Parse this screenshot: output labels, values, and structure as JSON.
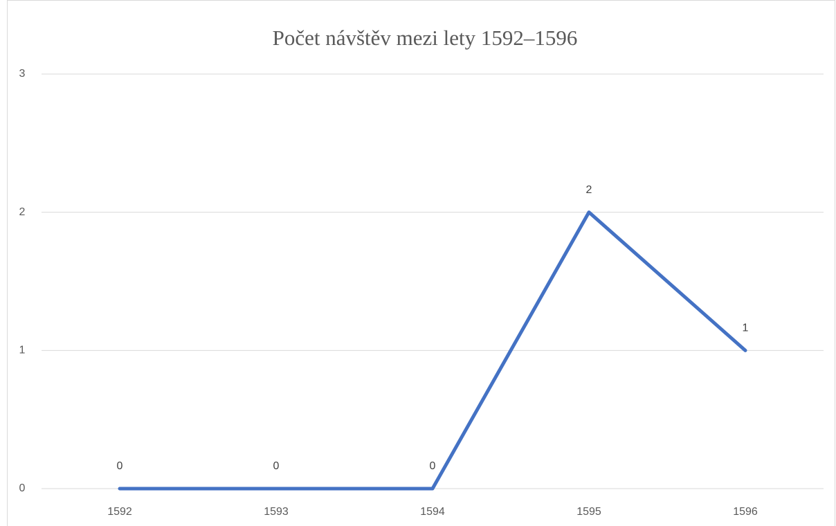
{
  "chart_data": {
    "type": "line",
    "title": "Počet návštěv mezi lety 1592–1596",
    "categories": [
      "1592",
      "1593",
      "1594",
      "1595",
      "1596"
    ],
    "series": [
      {
        "name": "Počet návštěv",
        "color": "#4472c4",
        "values": [
          0,
          0,
          0,
          2,
          1
        ]
      }
    ],
    "ylim": [
      0,
      3
    ],
    "yticks": [
      0,
      1,
      2,
      3
    ],
    "grid": true,
    "data_labels": true
  }
}
